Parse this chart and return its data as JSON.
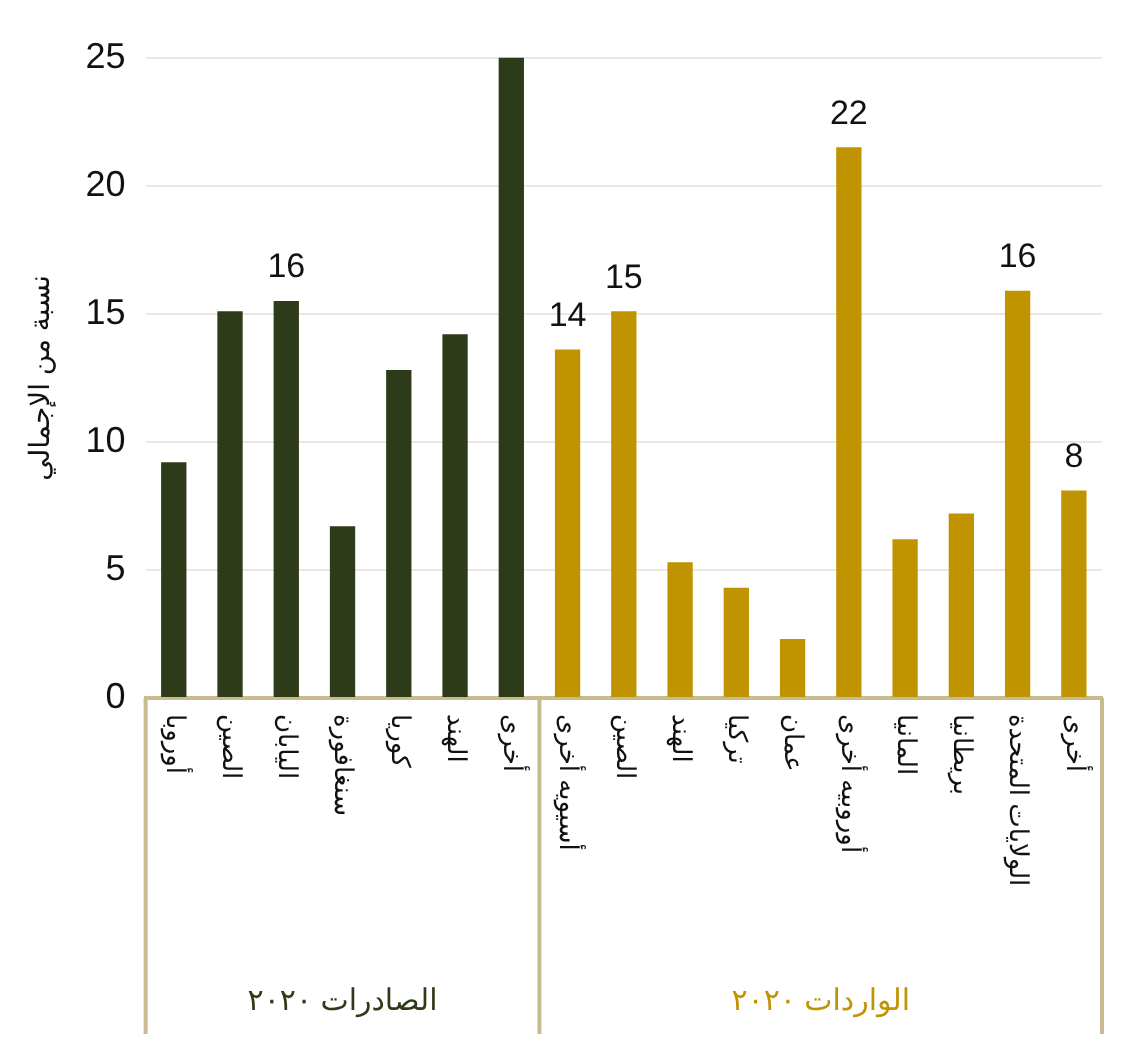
{
  "chart_data": {
    "type": "bar",
    "ylabel": "نسبة من الإجمالي",
    "categories": [
      "أوروبا",
      "الصين",
      "اليابان",
      "سنغافورة",
      "كوريا",
      "الهند",
      "أخرى",
      "أسيويه أخرى",
      "الصين",
      "الهند",
      "تركيا",
      "عمان",
      "أوروبيه أخرى",
      "المانيا",
      "بريطانيا",
      "الولايات المتحدة",
      "أخرى"
    ],
    "series": [
      {
        "name": "الصادرات ٢٠٢٠",
        "color": "#2e3b18",
        "values": [
          9.2,
          15.1,
          15.5,
          6.7,
          12.8,
          14.2,
          25,
          null,
          null,
          null,
          null,
          null,
          null,
          null,
          null,
          null,
          null
        ],
        "value_labels": [
          null,
          null,
          "16",
          null,
          null,
          null,
          null,
          null,
          null,
          null,
          null,
          null,
          null,
          null,
          null,
          null,
          null
        ]
      },
      {
        "name": "الواردات ٢٠٢٠",
        "color": "#c09400",
        "values": [
          null,
          null,
          null,
          null,
          null,
          null,
          null,
          13.6,
          15.1,
          5.3,
          4.3,
          2.3,
          21.5,
          6.2,
          7.2,
          15.9,
          8.1
        ],
        "value_labels": [
          null,
          null,
          null,
          null,
          null,
          null,
          null,
          "14",
          "15",
          null,
          null,
          null,
          "22",
          null,
          null,
          "16",
          "8"
        ]
      }
    ],
    "ylim": [
      0,
      25
    ],
    "yticks": [
      0,
      5,
      10,
      15,
      20,
      25
    ],
    "grid": "y",
    "legend": false
  }
}
